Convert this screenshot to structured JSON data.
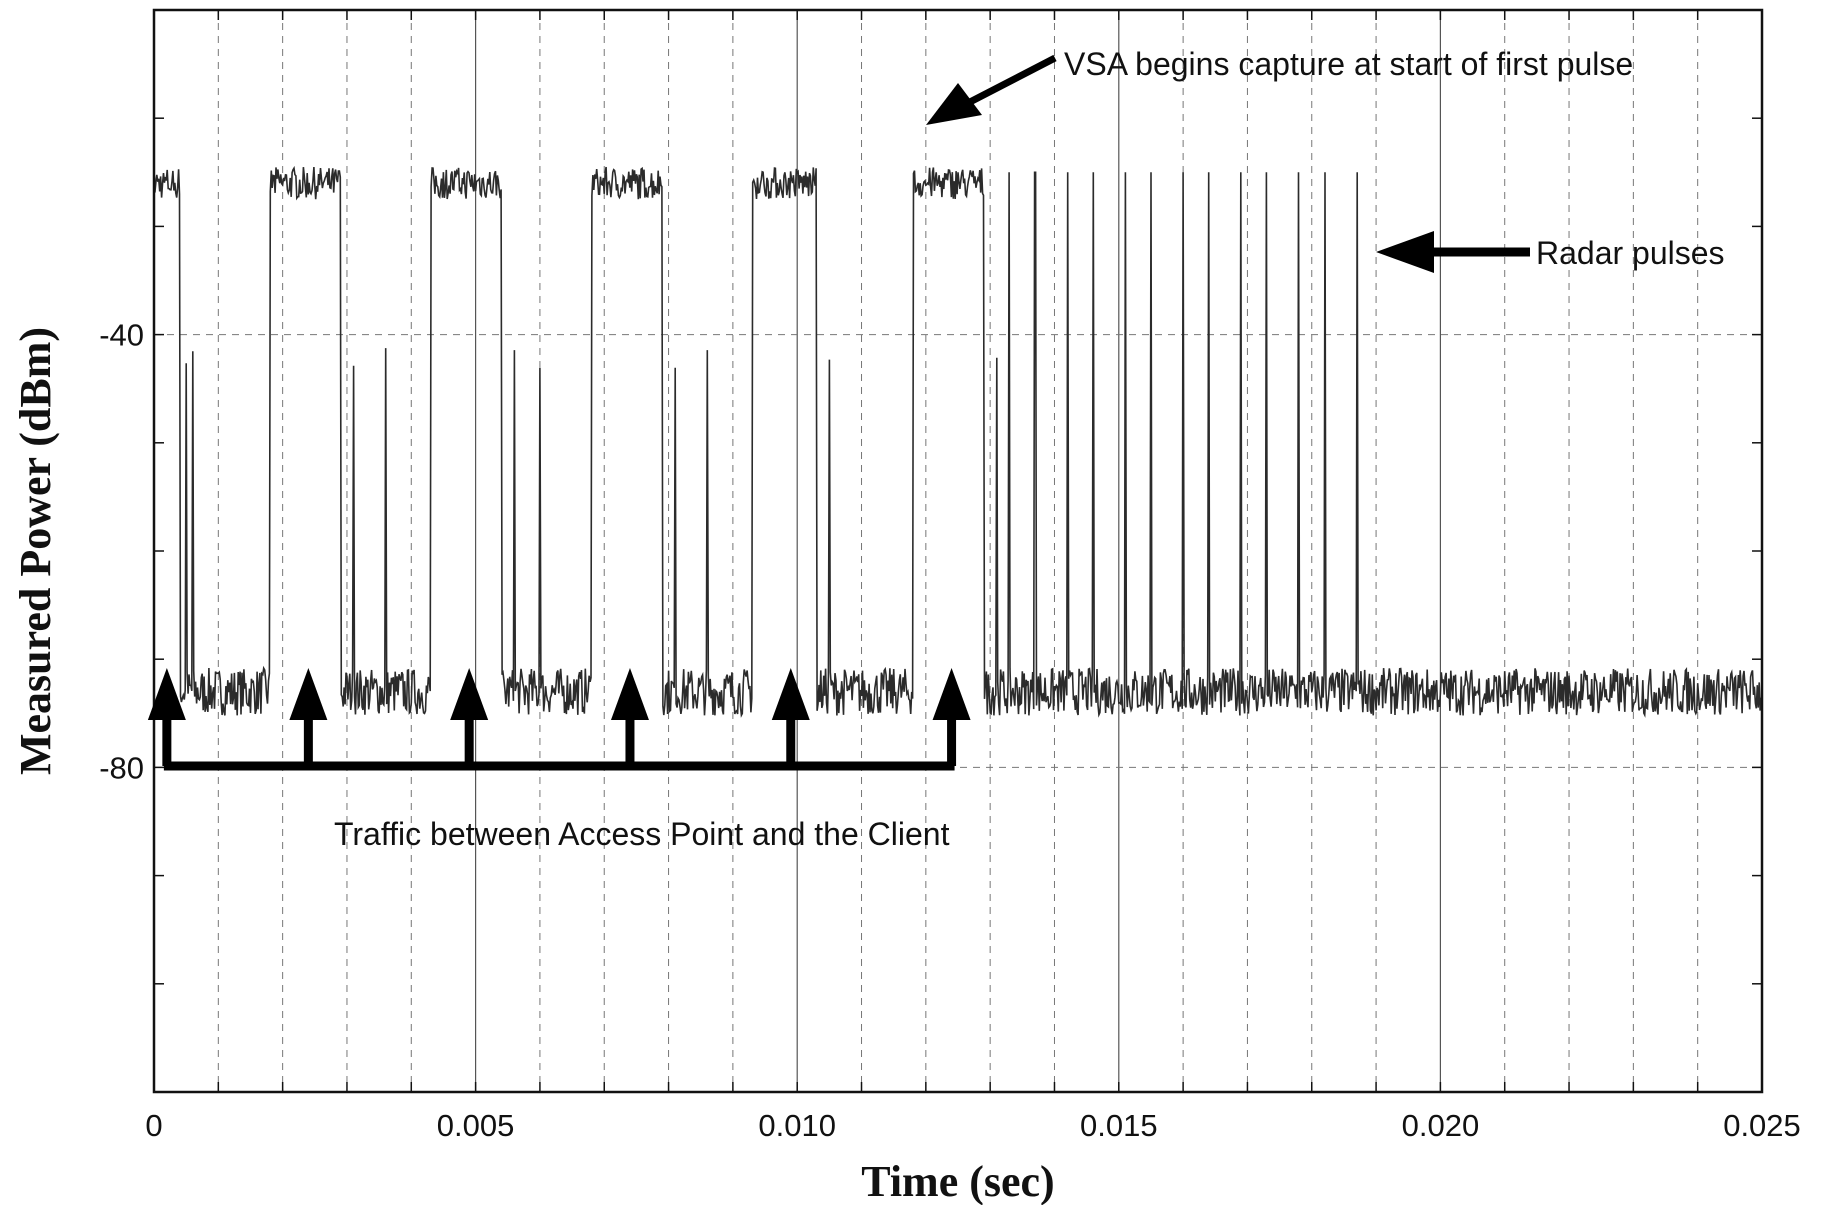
{
  "chart_data": {
    "type": "line",
    "title": "",
    "xlabel": "Time (sec)",
    "ylabel": "Measured Power (dBm)",
    "xlim": [
      0,
      0.025
    ],
    "ylim": [
      -110,
      -10
    ],
    "x_ticks": [
      0,
      0.005,
      0.01,
      0.015,
      0.02,
      0.025
    ],
    "x_tick_labels": [
      "0",
      "0.005",
      "0.010",
      "0.015",
      "0.020",
      "0.025"
    ],
    "y_ticks": [
      -40,
      -80
    ],
    "y_tick_labels": [
      "-40",
      "-80"
    ],
    "grid": true,
    "noise_floor_dbm": -73,
    "wifi_level_dbm": -26,
    "sync_peak_dbm": -42,
    "radar_peak_dbm": -25,
    "wifi_bursts": [
      {
        "start": 0.0,
        "end": 0.0004
      },
      {
        "start": 0.0018,
        "end": 0.0029
      },
      {
        "start": 0.0043,
        "end": 0.0054
      },
      {
        "start": 0.0068,
        "end": 0.0079
      },
      {
        "start": 0.0093,
        "end": 0.0103
      },
      {
        "start": 0.0118,
        "end": 0.0129
      }
    ],
    "ack_spikes": [
      0.0005,
      0.0006,
      0.0031,
      0.0036,
      0.0056,
      0.006,
      0.0081,
      0.0086,
      0.0105,
      0.0131
    ],
    "radar_pulses": [
      0.0121,
      0.0125,
      0.0133,
      0.0137,
      0.0142,
      0.0146,
      0.0151,
      0.0155,
      0.016,
      0.0164,
      0.0169,
      0.0173,
      0.0178,
      0.0182,
      0.0187
    ],
    "annotations": {
      "vsa": "VSA begins capture at start of first pulse",
      "radar": "Radar pulses",
      "traffic": "Traffic between Access Point and the Client"
    },
    "traffic_arrows_x": [
      0.0002,
      0.0024,
      0.0049,
      0.0074,
      0.0099,
      0.0124
    ]
  }
}
